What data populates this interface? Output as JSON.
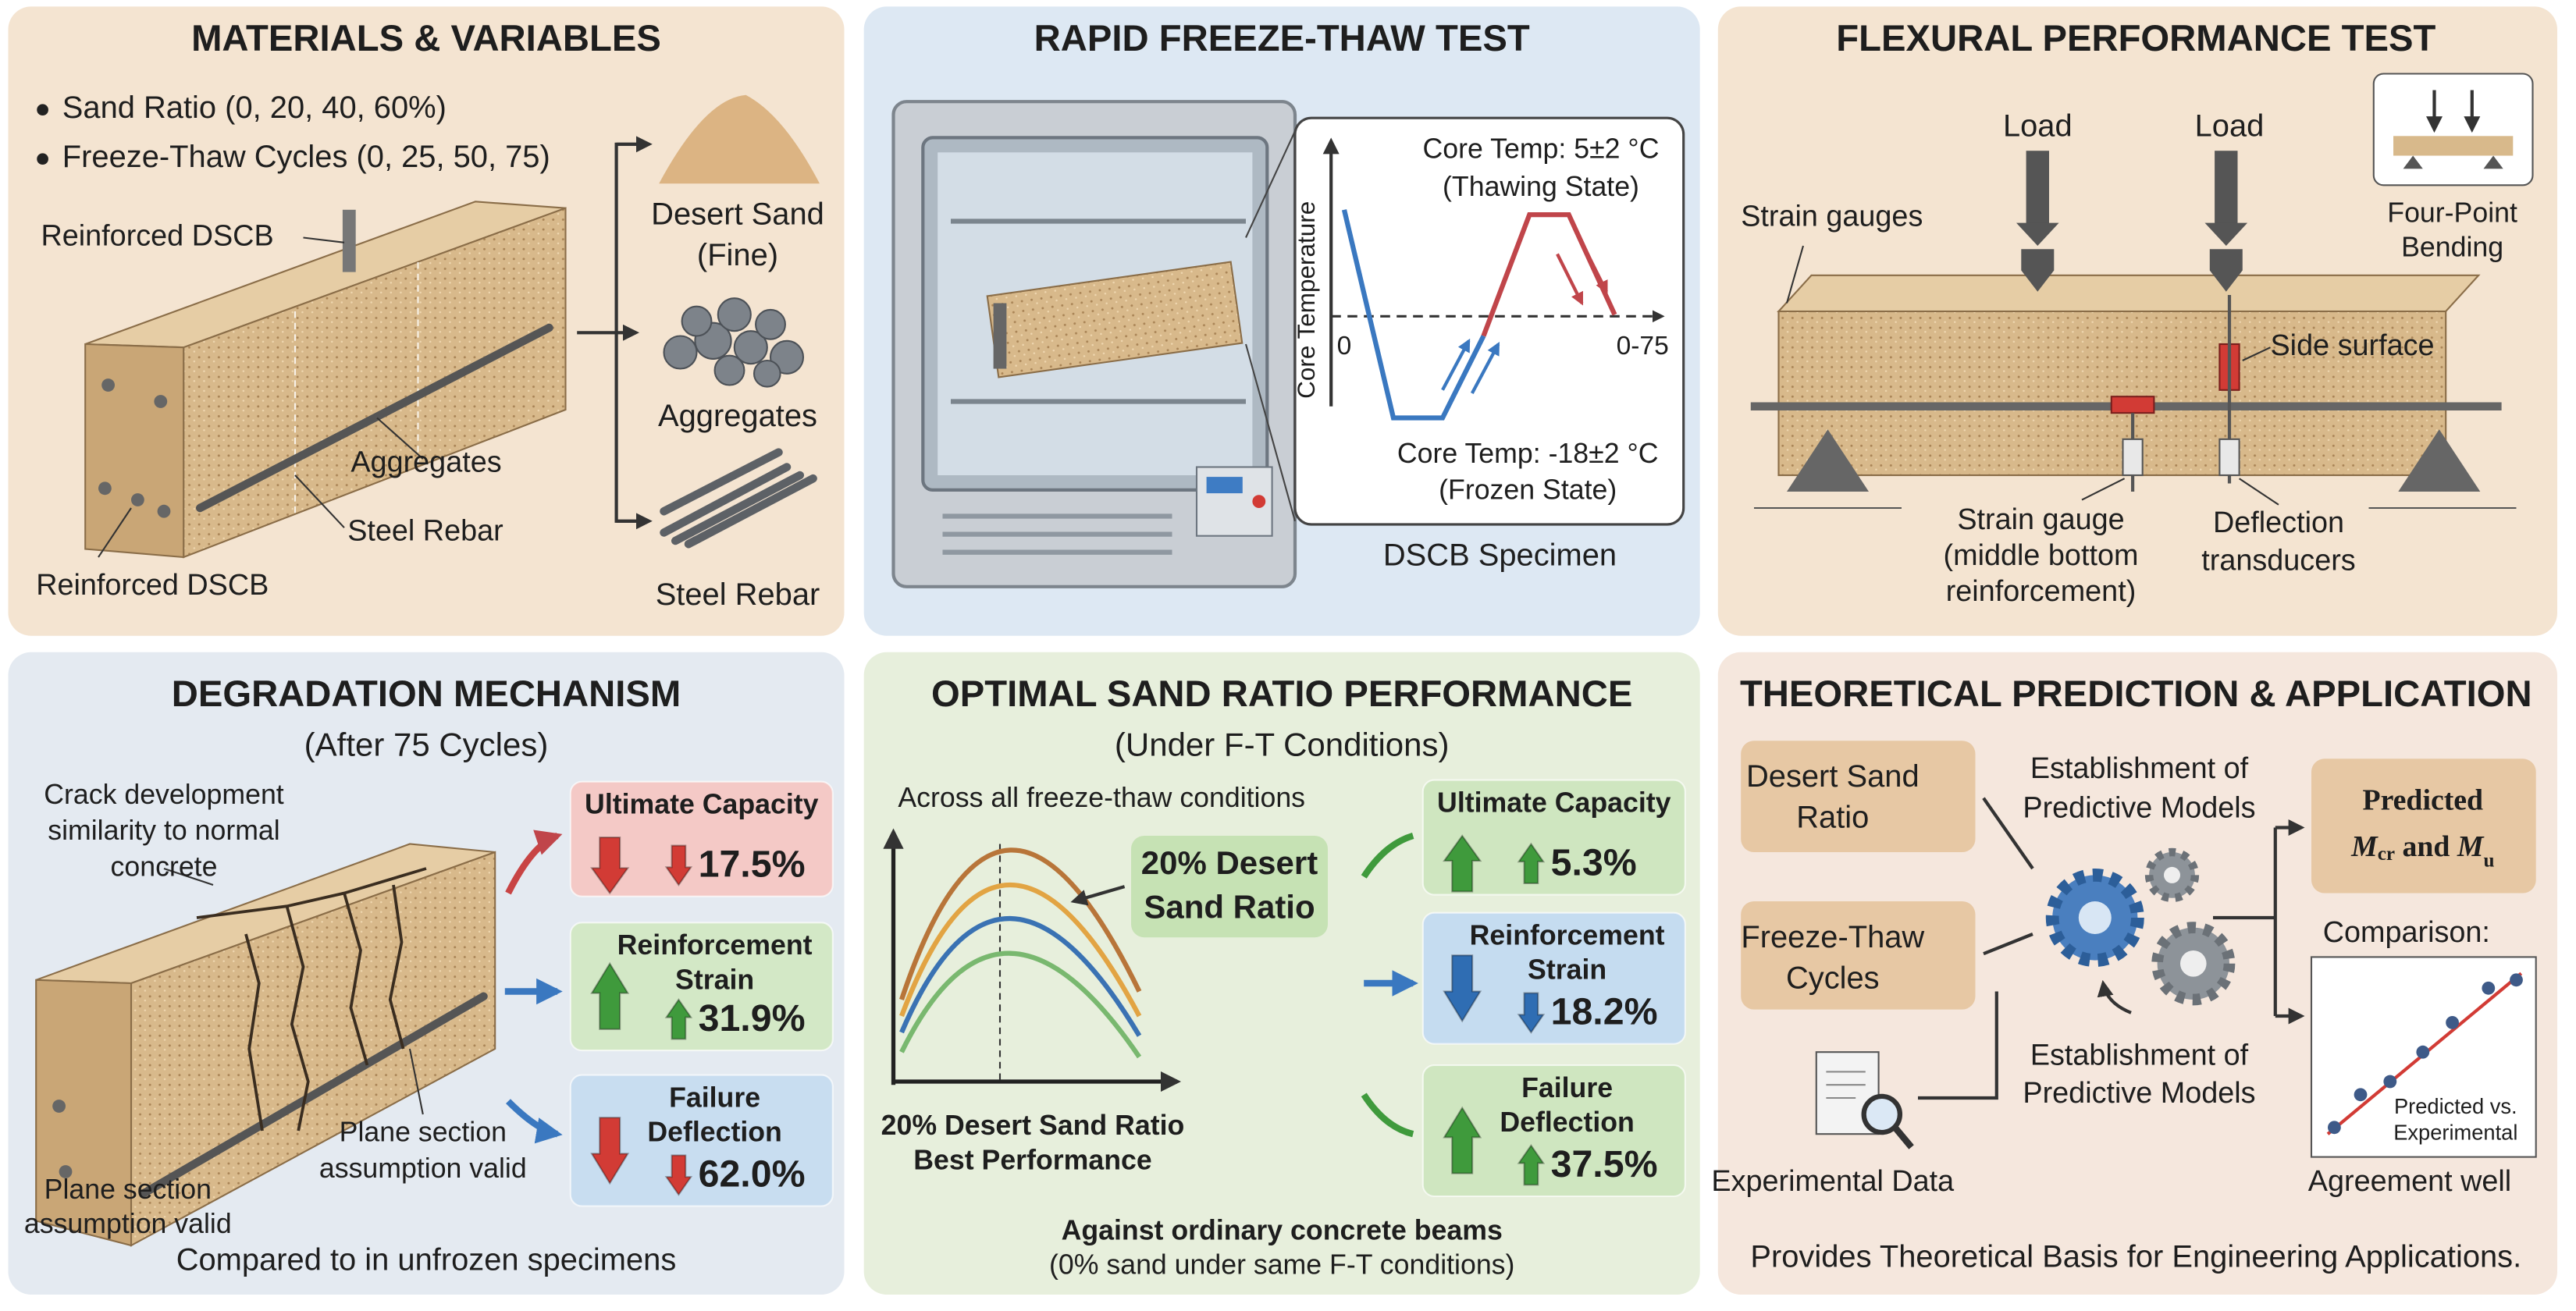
{
  "materials": {
    "title": "MATERIALS & VARIABLES",
    "bullets": [
      "Sand Ratio (0, 20, 40, 60%)",
      "Freeze-Thaw Cycles (0, 25, 50, 75)"
    ],
    "specimen_top": "Reinforced DSCB",
    "aggregates": "Aggregates",
    "rebar": "Steel Rebar",
    "specimen_bottom": "Reinforced DSCB",
    "items": [
      {
        "lines": [
          "Desert Sand",
          "(Fine)"
        ]
      },
      {
        "lines": [
          "Aggregates"
        ]
      },
      {
        "lines": [
          "Steel Rebar"
        ]
      }
    ]
  },
  "freeze_thaw": {
    "title": "RAPID FREEZE-THAW TEST",
    "y_axis": "Core Temperature",
    "origin": "0",
    "cycles": "0-75",
    "thawing": [
      "Core Temp: 5±2 °C",
      "(Thawing State)"
    ],
    "frozen": [
      "Core Temp: -18±2 °C",
      "(Frozen State)"
    ],
    "caption": "DSCB Specimen"
  },
  "flexural": {
    "title": "FLEXURAL PERFORMANCE TEST",
    "loads": [
      "Load",
      "Load"
    ],
    "setup": [
      "Four-Point",
      "Bending"
    ],
    "strain_gauges": "Strain gauges",
    "side_surface": "Side surface",
    "strain_gauge": [
      "Strain gauge",
      "(middle bottom",
      "reinforcement)"
    ],
    "deflection": [
      "Deflection",
      "transducers"
    ]
  },
  "degradation": {
    "title": "DEGRADATION MECHANISM",
    "subtitle": "(After 75 Cycles)",
    "crack_note": [
      "Crack development",
      "similarity to normal",
      "concrete"
    ],
    "plane_note_1": [
      "Plane section",
      "assumption valid"
    ],
    "plane_note_2": [
      "Plane section",
      "assumption valid"
    ],
    "footer": "Compared to in unfrozen specimens",
    "results": [
      {
        "label": [
          "Ultimate Capacity"
        ],
        "change": "17.5%",
        "direction": "down",
        "color": "#f4c9c6",
        "arrow_color": "#d23b35"
      },
      {
        "label": [
          "Reinforcement",
          "Strain"
        ],
        "change": "31.9%",
        "direction": "up",
        "color": "#d3e8c6",
        "arrow_color": "#3f9a3c"
      },
      {
        "label": [
          "Failure",
          "Deflection"
        ],
        "change": "62.0%",
        "direction": "down",
        "color": "#c8ddf0",
        "arrow_color": "#d23b35"
      }
    ]
  },
  "optimal": {
    "title": "OPTIMAL SAND RATIO PERFORMANCE",
    "subtitle": "(Under F-T Conditions)",
    "chart_note": "Across all freeze-thaw conditions",
    "callout": [
      "20% Desert",
      "Sand Ratio"
    ],
    "chart_caption": [
      "20% Desert Sand Ratio",
      "Best Performance"
    ],
    "footer": [
      "Against ordinary concrete beams",
      "(0% sand under same F-T conditions)"
    ],
    "results": [
      {
        "label": [
          "Ultimate Capacity"
        ],
        "change": "5.3%",
        "direction": "up",
        "color": "#cfe6c0",
        "arrow_color": "#3f9a3c"
      },
      {
        "label": [
          "Reinforcement",
          "Strain"
        ],
        "change": "18.2%",
        "direction": "down",
        "color": "#c5dcf0",
        "arrow_color": "#2f6db3"
      },
      {
        "label": [
          "Failure",
          "Deflection"
        ],
        "change": "37.5%",
        "direction": "up",
        "color": "#cfe6c0",
        "arrow_color": "#3f9a3c"
      }
    ]
  },
  "prediction": {
    "title": "THEORETICAL PREDICTION & APPLICATION",
    "inputs": [
      [
        "Desert Sand",
        "Ratio"
      ],
      [
        "Freeze-Thaw",
        "Cycles"
      ]
    ],
    "data_label": "Experimental Data",
    "model_top": [
      "Establishment of",
      "Predictive Models"
    ],
    "model_bottom": [
      "Establishment of",
      "Predictive Models"
    ],
    "output": "Predicted",
    "output_math": [
      "M",
      "cr",
      " and ",
      "M",
      "u"
    ],
    "comparison": "Comparison:",
    "plot_label": [
      "Predicted vs.",
      "Experimental"
    ],
    "agreement": "Agreement well",
    "footer": "Provides Theoretical Basis for Engineering Applications."
  }
}
